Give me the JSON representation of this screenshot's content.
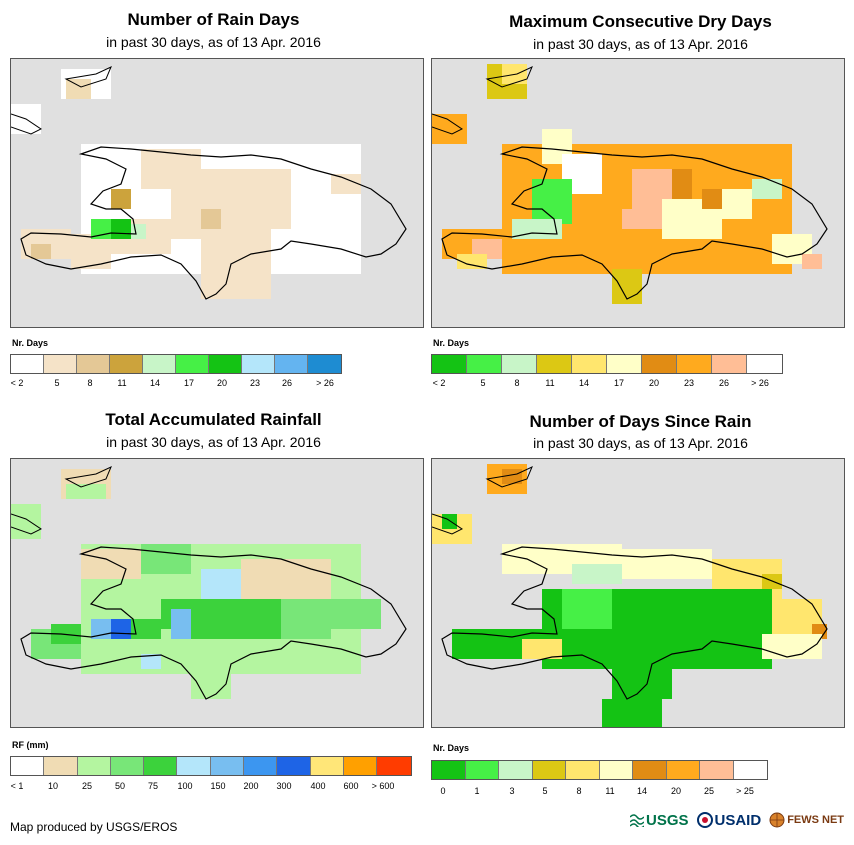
{
  "credit": "Map produced by USGS/EROS",
  "logos": {
    "usgs": "USGS",
    "usaid": "USAID",
    "fews": "FEWS NET"
  },
  "panels": [
    {
      "title": "Number of Rain Days",
      "subtitle": "in past 30 days, as of 13 Apr. 2016",
      "legend_title": "Nr. Days",
      "legend_labels": [
        "< 2",
        "5",
        "8",
        "11",
        "14",
        "17",
        "20",
        "23",
        "26",
        "> 26"
      ],
      "legend_colors": [
        "#ffffff",
        "#f5e3c8",
        "#e4c896",
        "#cca33c",
        "#c8f5c8",
        "#46f046",
        "#14c314",
        "#b4e6fa",
        "#64b4f0",
        "#1e8cd2"
      ]
    },
    {
      "title": "Maximum Consecutive Dry Days",
      "subtitle": "in past 30 days, as of 13 Apr. 2016",
      "legend_title": "Nr. Days",
      "legend_labels": [
        "< 2",
        "5",
        "8",
        "11",
        "14",
        "17",
        "20",
        "23",
        "26",
        "> 26"
      ],
      "legend_colors": [
        "#14c314",
        "#46f046",
        "#c8f5c8",
        "#dcc814",
        "#ffe66e",
        "#ffffc8",
        "#e18c14",
        "#ffaa1e",
        "#ffbe96",
        "#ffffff"
      ]
    },
    {
      "title": "Total Accumulated Rainfall",
      "subtitle": "in past 30 days, as of 13 Apr. 2016",
      "legend_title": "RF (mm)",
      "legend_labels": [
        "< 1",
        "10",
        "25",
        "50",
        "75",
        "100",
        "150",
        "200",
        "300",
        "400",
        "600",
        "> 600"
      ],
      "legend_colors": [
        "#ffffff",
        "#f0dcb4",
        "#b4f5a0",
        "#78e678",
        "#3cd23c",
        "#b4e6fa",
        "#78bef0",
        "#3c96f0",
        "#1e64e6",
        "#ffe678",
        "#ffa000",
        "#ff3c00"
      ]
    },
    {
      "title": "Number of Days Since Rain",
      "subtitle": "in past 30 days, as of 13 Apr. 2016",
      "legend_title": "Nr. Days",
      "legend_labels": [
        "0",
        "1",
        "3",
        "5",
        "8",
        "11",
        "14",
        "20",
        "25",
        "> 25"
      ],
      "legend_colors": [
        "#14c314",
        "#46f046",
        "#c8f5c8",
        "#dcc814",
        "#ffe66e",
        "#ffffc8",
        "#e18c14",
        "#ffaa1e",
        "#ffbe96",
        "#ffffff"
      ]
    }
  ]
}
